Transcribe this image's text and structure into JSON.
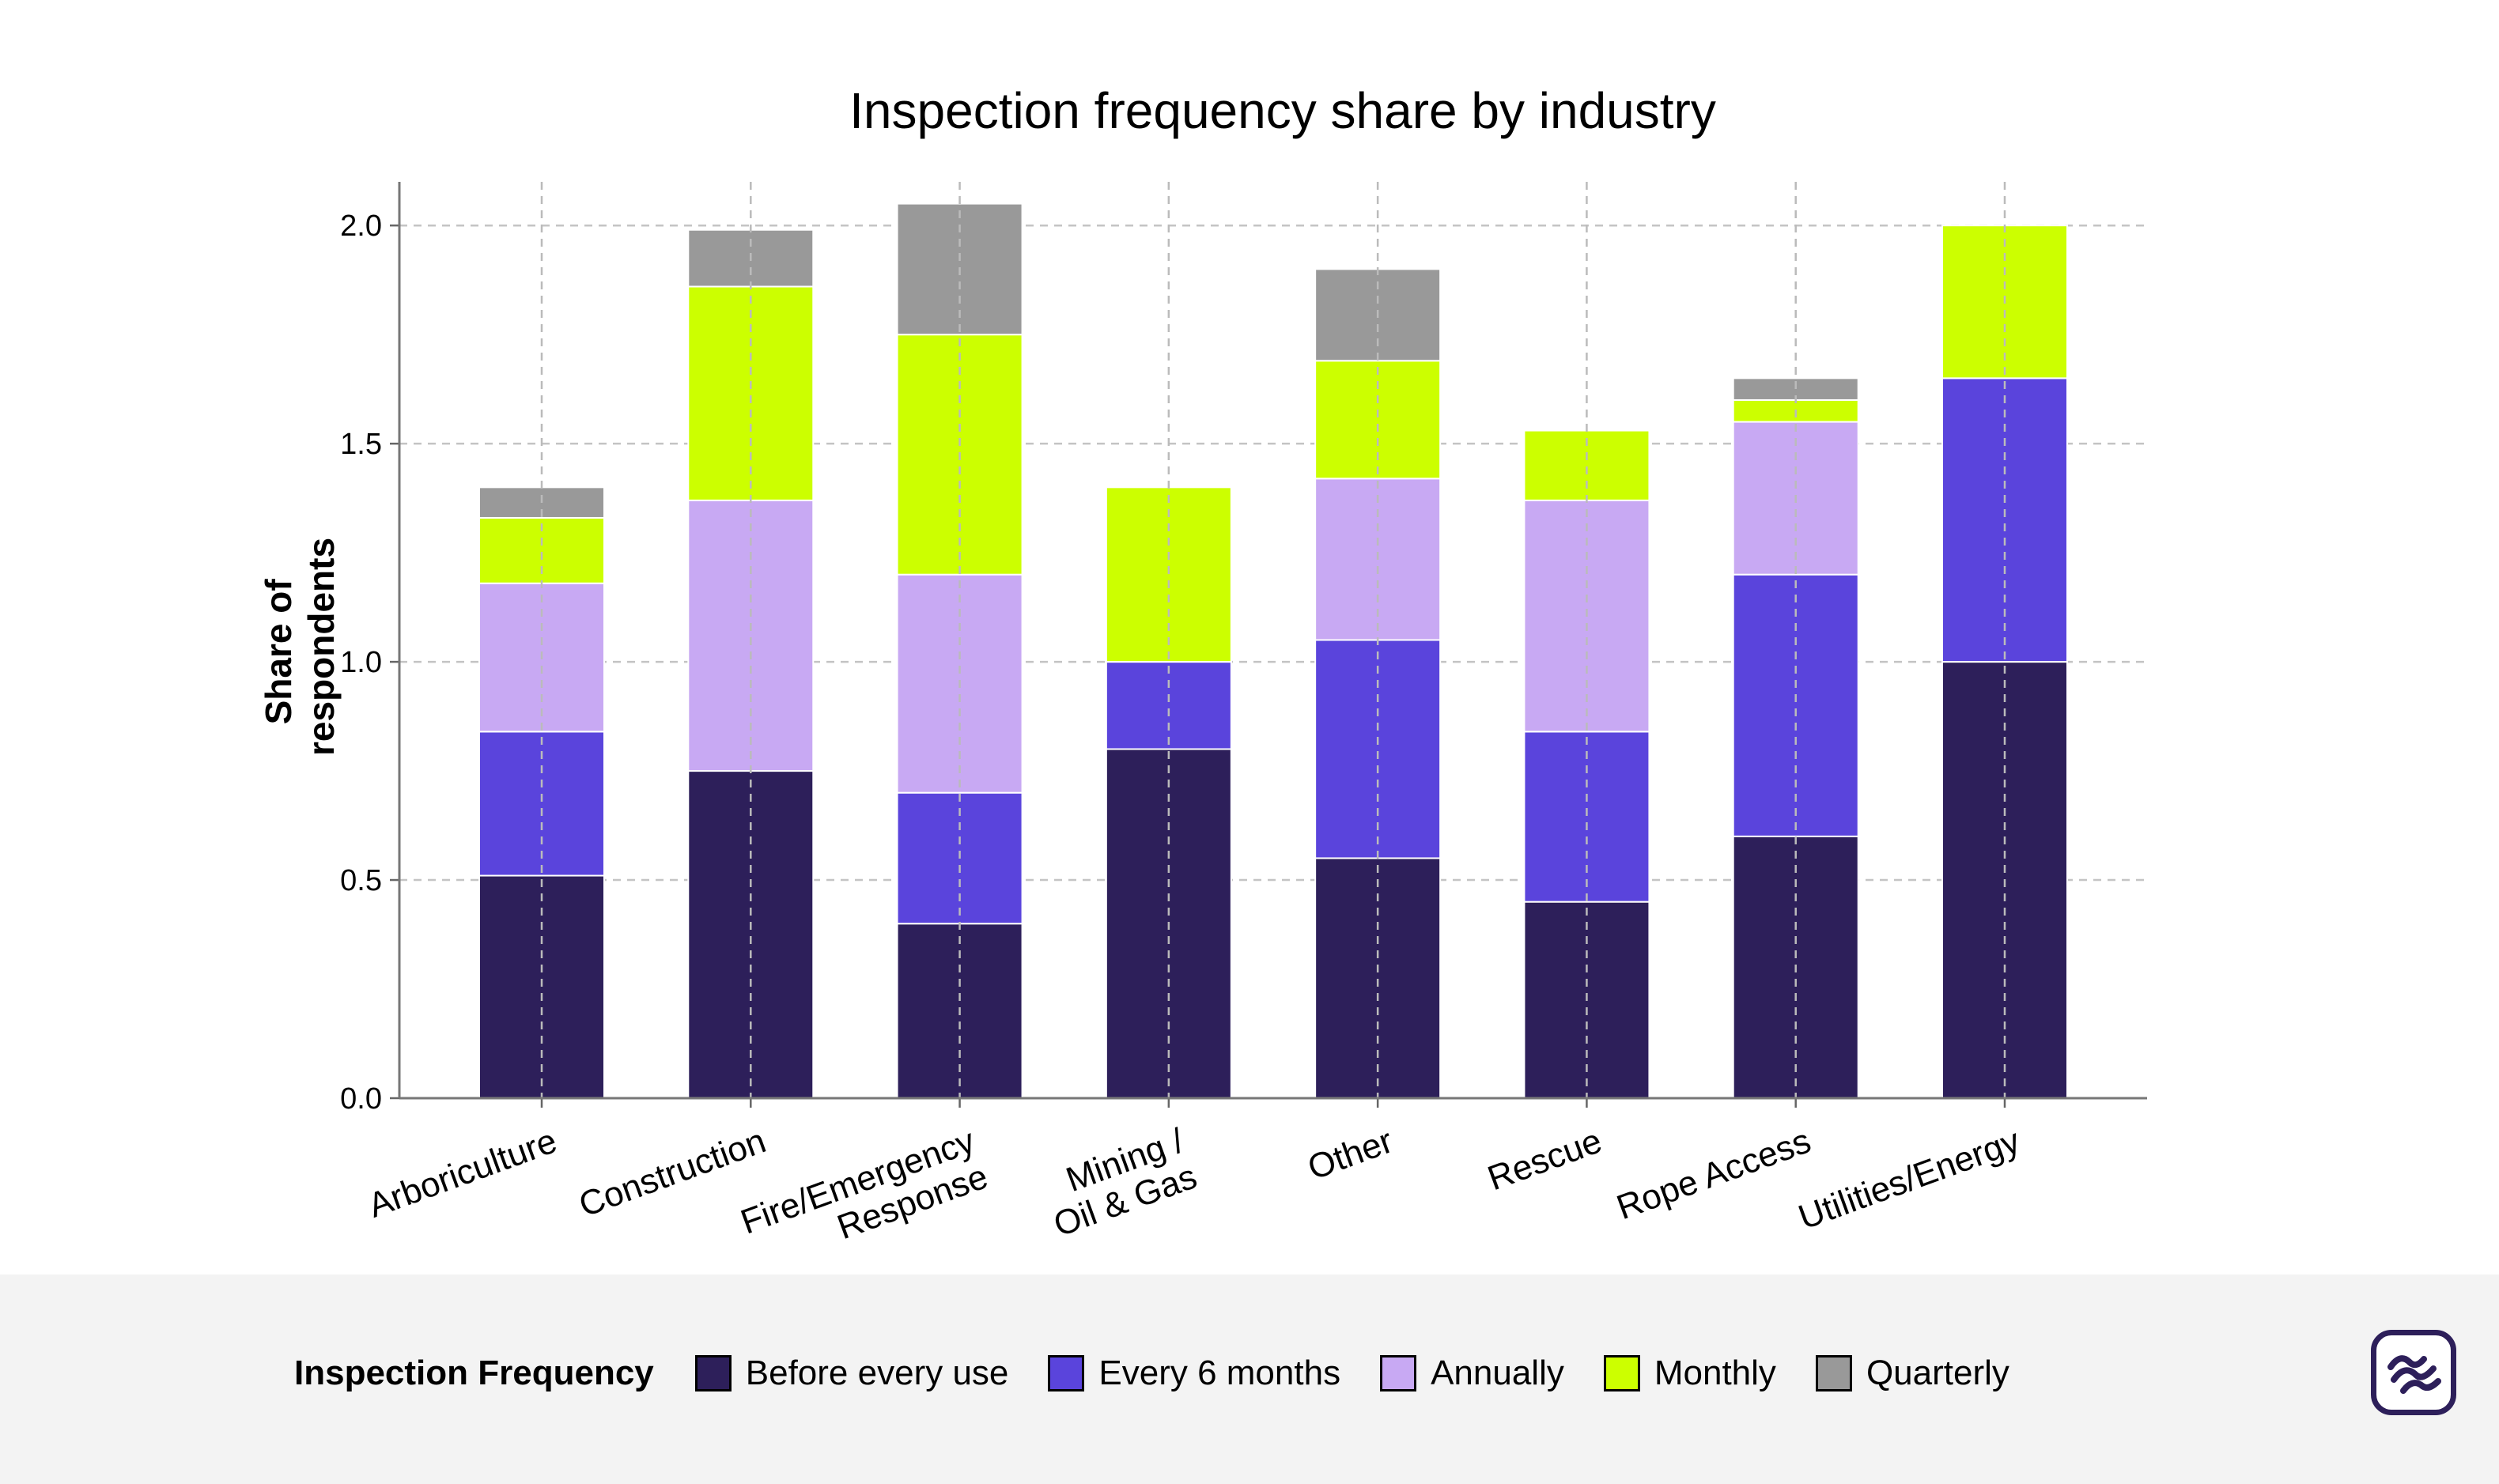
{
  "chart_data": {
    "type": "bar",
    "stacked": true,
    "title": "Inspection frequency share by industry",
    "xlabel": "",
    "ylabel": "Share of respondents",
    "ylabel_lines": [
      "Share of",
      "respondents"
    ],
    "ylim": [
      0,
      2.1
    ],
    "yticks": [
      0.0,
      0.5,
      1.0,
      1.5,
      2.0
    ],
    "ytick_labels": [
      "0.0",
      "0.5",
      "1.0",
      "1.5",
      "2.0"
    ],
    "grid": true,
    "categories": [
      "Arboriculture",
      "Construction",
      "Fire/Emergency Response",
      "Mining / Oil & Gas",
      "Other",
      "Rescue",
      "Rope Access",
      "Utilities/Energy"
    ],
    "category_lines": [
      [
        "Arboriculture"
      ],
      [
        "Construction"
      ],
      [
        "Fire/Emergency",
        "Response"
      ],
      [
        "Mining /",
        "Oil & Gas"
      ],
      [
        "Other"
      ],
      [
        "Rescue"
      ],
      [
        "Rope Access"
      ],
      [
        "Utilities/Energy"
      ]
    ],
    "series": [
      {
        "name": "Before every use",
        "color": "#2d1f5a",
        "values": [
          0.51,
          0.75,
          0.4,
          0.8,
          0.55,
          0.45,
          0.6,
          1.0
        ]
      },
      {
        "name": "Every 6 months",
        "color": "#5a44dc",
        "values": [
          0.33,
          0.0,
          0.3,
          0.2,
          0.5,
          0.39,
          0.6,
          0.65
        ]
      },
      {
        "name": "Annually",
        "color": "#c8a9f3",
        "values": [
          0.34,
          0.62,
          0.5,
          0.0,
          0.37,
          0.53,
          0.35,
          0.0
        ]
      },
      {
        "name": "Monthly",
        "color": "#ccff00",
        "values": [
          0.15,
          0.49,
          0.55,
          0.4,
          0.27,
          0.16,
          0.05,
          0.35
        ]
      },
      {
        "name": "Quarterly",
        "color": "#999999",
        "values": [
          0.07,
          0.13,
          0.3,
          0.0,
          0.21,
          0.0,
          0.05,
          0.0
        ]
      }
    ],
    "legend_title": "Inspection Frequency",
    "legend_position": "bottom"
  },
  "logo": {
    "icon": "wave-lines-icon",
    "color": "#2d1f5a"
  }
}
